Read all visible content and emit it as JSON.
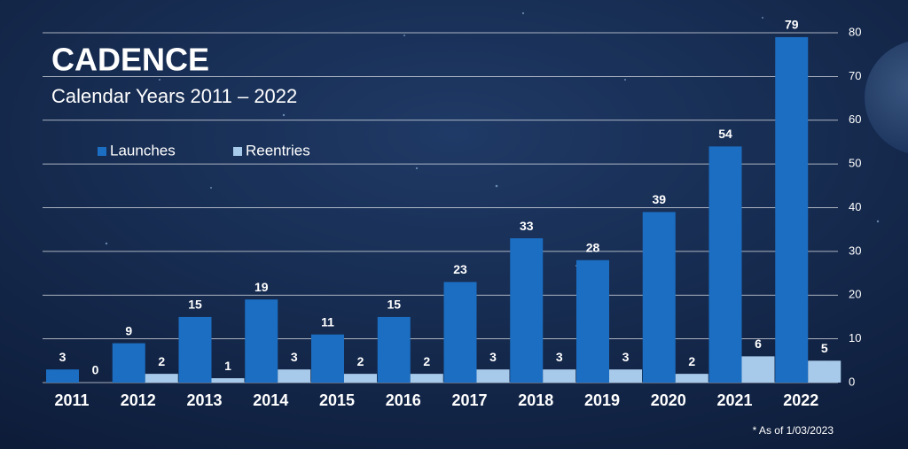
{
  "chart_data": {
    "type": "bar",
    "title": "CADENCE",
    "subtitle": "Calendar Years 2011 – 2022",
    "footnote": "* As of 1/03/2023",
    "categories": [
      "2011",
      "2012",
      "2013",
      "2014",
      "2015",
      "2016",
      "2017",
      "2018",
      "2019",
      "2020",
      "2021",
      "2022"
    ],
    "series": [
      {
        "name": "Launches",
        "color": "#1b6ec2",
        "values": [
          3,
          9,
          15,
          19,
          11,
          15,
          23,
          33,
          28,
          39,
          54,
          79
        ]
      },
      {
        "name": "Reentries",
        "color": "#a8caea",
        "values": [
          0,
          2,
          1,
          3,
          2,
          2,
          3,
          3,
          3,
          2,
          6,
          5
        ]
      }
    ],
    "ylim": [
      0,
      80
    ],
    "yticks": [
      0,
      10,
      20,
      30,
      40,
      50,
      60,
      70,
      80
    ],
    "grid": true,
    "legend": "top-left"
  }
}
